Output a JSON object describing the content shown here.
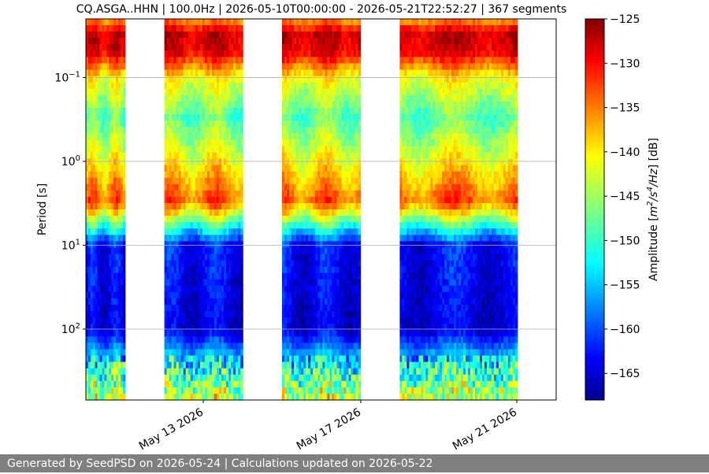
{
  "footer": {
    "text": "Generated by SeedPSD on 2026-05-24 | Calculations updated on 2026-05-22"
  },
  "chart_data": {
    "type": "heatmap",
    "title": "CQ.ASGA..HHN | 100.0Hz | 2026-05-10T00:00:00 - 2026-05-21T22:52:27 | 367 segments",
    "ylabel": "Period [s]",
    "y_scale": "log",
    "y_inverted": true,
    "ylim": [
      0.02,
      700
    ],
    "y_ticks": [
      {
        "value": 0.1,
        "base": "10",
        "exp": "−1"
      },
      {
        "value": 1,
        "base": "10",
        "exp": "0"
      },
      {
        "value": 10,
        "base": "10",
        "exp": "1"
      },
      {
        "value": 100,
        "base": "10",
        "exp": "2"
      }
    ],
    "x_ticks": [
      "May 13 2026",
      "May 17 2026",
      "May 21 2026"
    ],
    "grid": "horizontal",
    "colormap": "jet",
    "colorbar": {
      "label_prefix": "Amplitude [",
      "label_math": "m2/s4/Hz",
      "label_suffix": "] [dB]",
      "range": [
        -168,
        -125
      ],
      "ticks": [
        "−125",
        "−130",
        "−135",
        "−140",
        "−145",
        "−150",
        "−155",
        "−160",
        "−165"
      ]
    },
    "data_spans": [
      {
        "start": "2026-05-10T00:00",
        "end": "2026-05-11T00:00"
      },
      {
        "start": "2026-05-12T00:00",
        "end": "2026-05-13T23:59"
      },
      {
        "start": "2026-05-15T00:00",
        "end": "2026-05-16T23:59"
      },
      {
        "start": "2026-05-18T00:00",
        "end": "2026-05-20T23:59"
      }
    ],
    "profile": [
      {
        "period": 0.02,
        "db": -137
      },
      {
        "period": 0.03,
        "db": -128
      },
      {
        "period": 0.05,
        "db": -129
      },
      {
        "period": 0.1,
        "db": -141
      },
      {
        "period": 0.3,
        "db": -148
      },
      {
        "period": 1,
        "db": -141
      },
      {
        "period": 3,
        "db": -134
      },
      {
        "period": 6,
        "db": -150
      },
      {
        "period": 10,
        "db": -162
      },
      {
        "period": 100,
        "db": -164
      },
      {
        "period": 300,
        "db": -150
      },
      {
        "period": 700,
        "db": -143
      }
    ]
  }
}
